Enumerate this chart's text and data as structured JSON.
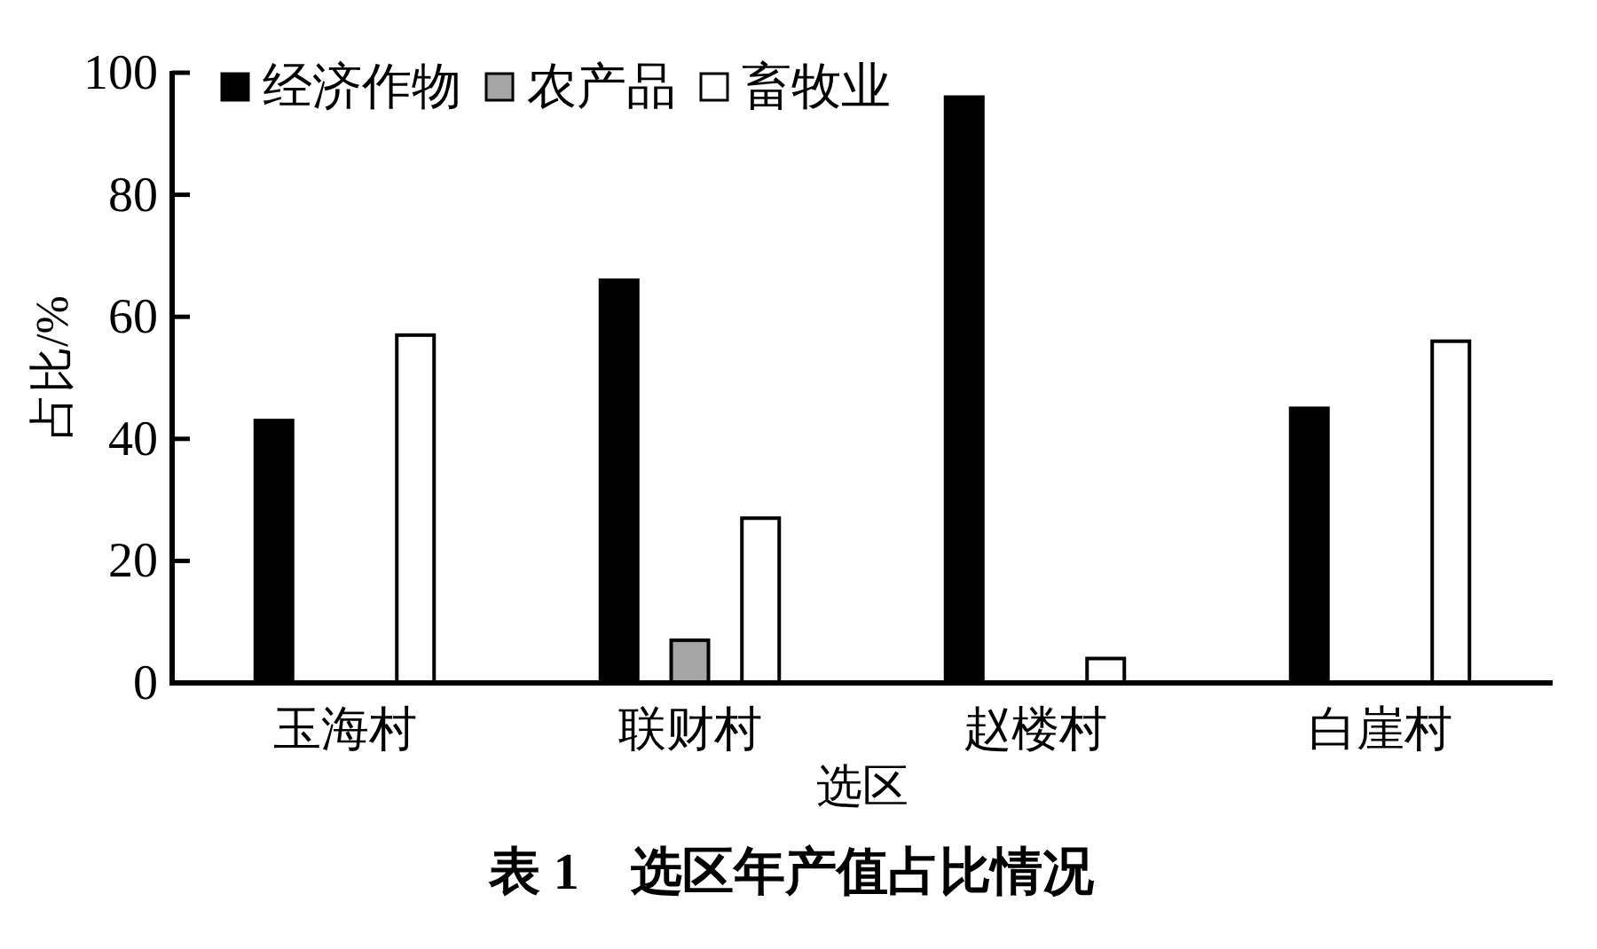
{
  "chart_data": {
    "type": "bar",
    "title": "表 1　选区年产值占比情况",
    "xlabel": "选区",
    "ylabel": "占比/%",
    "categories": [
      "玉海村",
      "联财村",
      "赵楼村",
      "白崖村"
    ],
    "series": [
      {
        "name": "经济作物",
        "color": "#000000",
        "values": [
          43,
          66,
          96,
          45
        ]
      },
      {
        "name": "农产品",
        "color": "#a6a6a6",
        "values": [
          null,
          7,
          null,
          null
        ]
      },
      {
        "name": "畜牧业",
        "color": "#ffffff",
        "values": [
          57,
          27,
          4,
          56
        ]
      }
    ],
    "ylim": [
      0,
      100
    ],
    "yticks": [
      0,
      20,
      40,
      60,
      80,
      100
    ],
    "grid": false,
    "legend": "top left"
  }
}
